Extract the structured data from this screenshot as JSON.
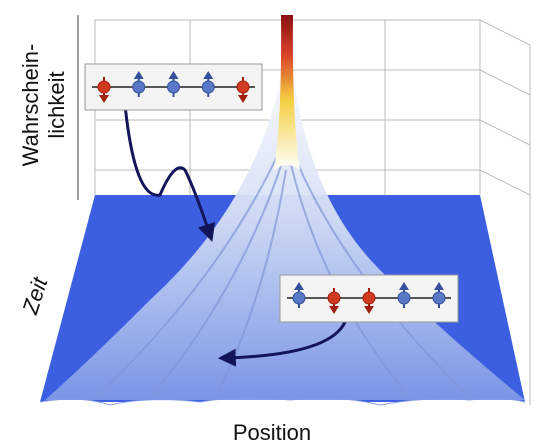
{
  "axes": {
    "z": {
      "lines": [
        "Wahrschein-",
        "lichkeit"
      ]
    },
    "y": {
      "label": "Zeit"
    },
    "x": {
      "label": "Position"
    }
  }
}
